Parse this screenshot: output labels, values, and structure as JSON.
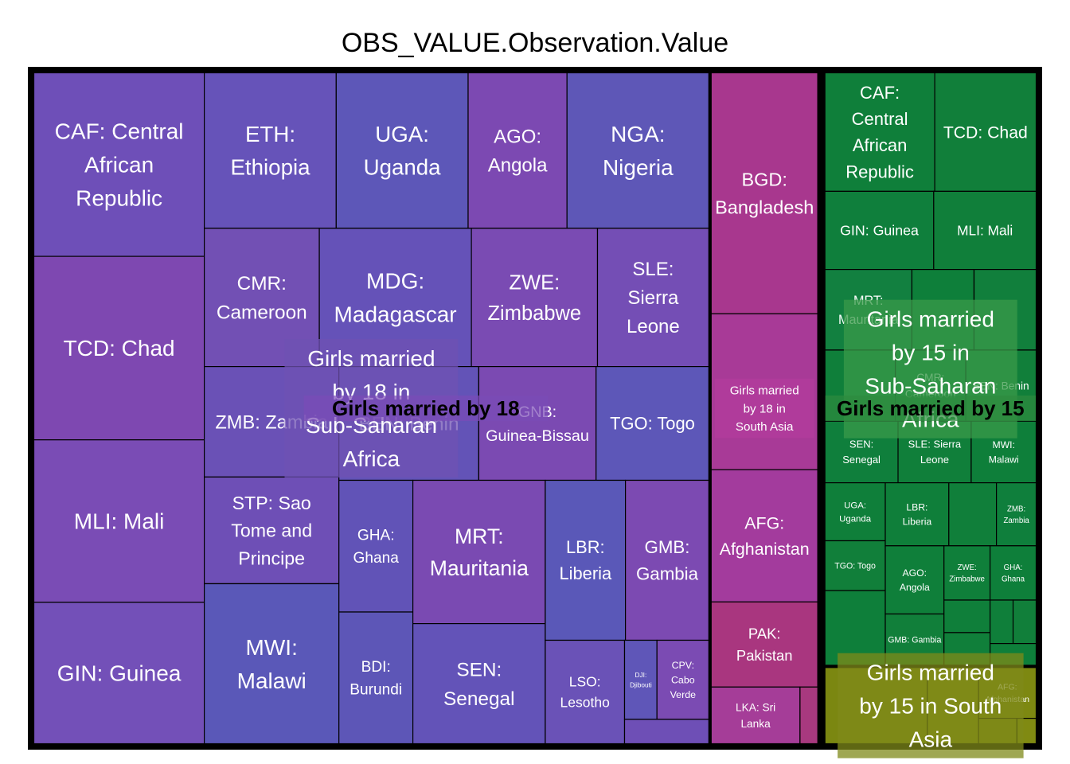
{
  "chart_data": {
    "type": "treemap",
    "title": "OBS_VALUE.Observation.Value",
    "groups": [
      {
        "name": "Girls married by 18",
        "color": "#7b4bb6",
        "subgroups": [
          {
            "name": "Girls married by 18 in Sub-Saharan Africa",
            "color": "#6f52b3",
            "tiles": [
              {
                "label": "CAF: Central African Republic",
                "value": 61,
                "color": "#6e4fb8"
              },
              {
                "label": "TCD: Chad",
                "value": 61,
                "color": "#7e48b1"
              },
              {
                "label": "MLI: Mali",
                "value": 54,
                "color": "#7a4cb5"
              },
              {
                "label": "GIN: Guinea",
                "value": 47,
                "color": "#7350b8"
              },
              {
                "label": "ETH: Ethiopia",
                "value": 40,
                "color": "#6653b9"
              },
              {
                "label": "UGA: Uganda",
                "value": 40,
                "color": "#5d57b8"
              },
              {
                "label": "AGO: Angola",
                "value": 30,
                "color": "#7c49b2"
              },
              {
                "label": "NGA: Nigeria",
                "value": 43,
                "color": "#5e57b7"
              },
              {
                "label": "CMR: Cameroon",
                "value": 31,
                "color": "#7250b4"
              },
              {
                "label": "MDG: Madagascar",
                "value": 41,
                "color": "#6552b8"
              },
              {
                "label": "ZWE: Zimbabwe",
                "value": 34,
                "color": "#7a4bb3"
              },
              {
                "label": "SLE: Sierra Leone",
                "value": 30,
                "color": "#744eb5"
              },
              {
                "label": "ZMB: Zambia",
                "value": 29,
                "color": "#6a51b6"
              },
              {
                "label": "STP: Sao Tome and Principe",
                "value": 28,
                "color": "#6e4fb6"
              },
              {
                "label": "MWI: Malawi",
                "value": 42,
                "color": "#5a58b8"
              },
              {
                "label": "BEN: Benin",
                "value": 31,
                "color": "#6353b7"
              },
              {
                "label": "GNB: Guinea-Bissau",
                "value": 26,
                "color": "#7b4ab2"
              },
              {
                "label": "TGO: Togo",
                "value": 25,
                "color": "#5d57b8"
              },
              {
                "label": "GHA: Ghana",
                "value": 19,
                "color": "#6153b7"
              },
              {
                "label": "BDI: Burundi",
                "value": 19,
                "color": "#5d56b7"
              },
              {
                "label": "MRT: Mauritania",
                "value": 37,
                "color": "#7a4ab2"
              },
              {
                "label": "SEN: Senegal",
                "value": 31,
                "color": "#6353b8"
              },
              {
                "label": "LBR: Liberia",
                "value": 25,
                "color": "#5a58b8"
              },
              {
                "label": "GMB: Gambia",
                "value": 26,
                "color": "#7c4ab2"
              },
              {
                "label": "LSO: Lesotho",
                "value": 16,
                "color": "#6a52b7"
              },
              {
                "label": "DJI: Djibouti",
                "value": 5,
                "color": "#5f56b8"
              },
              {
                "label": "CPV: Cabo Verde",
                "value": 8,
                "color": "#7b4bb3"
              },
              {
                "label": "",
                "value": 4,
                "color": "#6e4fb6"
              }
            ]
          },
          {
            "name": "Girls married by 18 in South Asia",
            "color": "#b33c9c",
            "tiles": [
              {
                "label": "BGD: Bangladesh",
                "value": 51,
                "color": "#a8378e"
              },
              {
                "label": "",
                "value": 33,
                "color": "#a83a97"
              },
              {
                "label": "AFG: Afghanistan",
                "value": 28,
                "color": "#a33b9d"
              },
              {
                "label": "PAK: Pakistan",
                "value": 18,
                "color": "#a9367f"
              },
              {
                "label": "LKA: Sri Lanka",
                "value": 10,
                "color": "#a53d98"
              },
              {
                "label": "",
                "value": 2,
                "color": "#a8397f"
              }
            ]
          }
        ]
      },
      {
        "name": "Girls married by 15",
        "color": "#2e8a3e",
        "subgroups": [
          {
            "name": "Girls married by 15 in Sub-Saharan Africa",
            "color": "#3a9a4a",
            "tiles": [
              {
                "label": "CAF: Central African Republic",
                "value": 26,
                "color": "#0f7f3a"
              },
              {
                "label": "TCD: Chad",
                "value": 24,
                "color": "#117f3a"
              },
              {
                "label": "GIN: Guinea",
                "value": 17,
                "color": "#0f7f3c"
              },
              {
                "label": "MLI: Mali",
                "value": 16,
                "color": "#107f3a"
              },
              {
                "label": "MRT: Mauritania",
                "value": 14,
                "color": "#128040"
              },
              {
                "label": "",
                "value": 10,
                "color": "#0e7f3a"
              },
              {
                "label": "",
                "value": 10,
                "color": "#117f3c"
              },
              {
                "label": "",
                "value": 10,
                "color": "#0f7f3a"
              },
              {
                "label": "CMR: Cameroon",
                "value": 10,
                "color": "#0f7f3a"
              },
              {
                "label": "BEN: Benin",
                "value": 10,
                "color": "#117f3a"
              },
              {
                "label": "SEN: Senegal",
                "value": 9,
                "color": "#0f7f3c"
              },
              {
                "label": "SLE: Sierra Leone",
                "value": 9,
                "color": "#107f3a"
              },
              {
                "label": "MWI: Malawi",
                "value": 8,
                "color": "#0e7f3a"
              },
              {
                "label": "UGA: Uganda",
                "value": 7,
                "color": "#0f7f3a"
              },
              {
                "label": "TGO: Togo",
                "value": 6,
                "color": "#117f3a"
              },
              {
                "label": "",
                "value": 9,
                "color": "#0e7f3a"
              },
              {
                "label": "LBR: Liberia",
                "value": 8,
                "color": "#0f7f3a"
              },
              {
                "label": "",
                "value": 6,
                "color": "#107f3a"
              },
              {
                "label": "ZMB: Zambia",
                "value": 5,
                "color": "#0f7f3c"
              },
              {
                "label": "AGO: Angola",
                "value": 8,
                "color": "#0f7f3a"
              },
              {
                "label": "GMB: Gambia",
                "value": 6,
                "color": "#117f3a"
              },
              {
                "label": "ZWE: Zimbabwe",
                "value": 5,
                "color": "#0f7f3a"
              },
              {
                "label": "GHA: Ghana",
                "value": 5,
                "color": "#0e7f3a"
              },
              {
                "label": "",
                "value": 3,
                "color": "#0f7f3a"
              },
              {
                "label": "",
                "value": 3,
                "color": "#107f3a"
              },
              {
                "label": "",
                "value": 2,
                "color": "#0f7f3a"
              },
              {
                "label": "",
                "value": 2,
                "color": "#117f3a"
              },
              {
                "label": "",
                "value": 2,
                "color": "#0e7f3a"
              }
            ]
          },
          {
            "name": "Girls married by 15 in South Asia",
            "color": "#7f8a1a",
            "tiles": [
              {
                "label": "",
                "value": 16,
                "color": "#7b8711"
              },
              {
                "label": "",
                "value": 8,
                "color": "#808a12"
              },
              {
                "label": "AFG: Afghanistan",
                "value": 6,
                "color": "#7d8811"
              },
              {
                "label": "",
                "value": 2,
                "color": "#7b8711"
              },
              {
                "label": "",
                "value": 1,
                "color": "#808a12"
              }
            ]
          }
        ]
      }
    ]
  }
}
